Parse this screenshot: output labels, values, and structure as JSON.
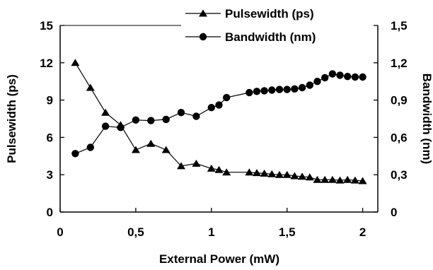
{
  "chart_data": {
    "type": "line",
    "xlabel": "External Power (mW)",
    "ylabel_left": "Pulsewidth (ps)",
    "ylabel_right": "Bandwidth (nm)",
    "xlim": [
      0,
      2.1
    ],
    "ylim_left": [
      0,
      15
    ],
    "ylim_right": [
      0,
      1.5
    ],
    "x_ticks": [
      0,
      0.5,
      1,
      1.5,
      2
    ],
    "x_tick_labels": [
      "0",
      "0,5",
      "1",
      "1,5",
      "2"
    ],
    "y_left_ticks": [
      0,
      3,
      6,
      9,
      12,
      15
    ],
    "y_left_tick_labels": [
      "0",
      "3",
      "6",
      "9",
      "12",
      "15"
    ],
    "y_right_ticks": [
      0,
      0.3,
      0.6,
      0.9,
      1.2,
      1.5
    ],
    "y_right_tick_labels": [
      "0",
      "0,3",
      "0,6",
      "0,9",
      "1,2",
      "1,5"
    ],
    "grid": false,
    "legend_position": "top-right",
    "series": [
      {
        "name": "Pulsewidth (ps)",
        "axis": "left",
        "marker": "triangle",
        "x": [
          0.1,
          0.2,
          0.3,
          0.4,
          0.5,
          0.6,
          0.7,
          0.8,
          0.9,
          1.0,
          1.05,
          1.1,
          1.25,
          1.3,
          1.35,
          1.4,
          1.45,
          1.5,
          1.55,
          1.6,
          1.65,
          1.7,
          1.75,
          1.8,
          1.85,
          1.9,
          1.95,
          2.0
        ],
        "values": [
          12.0,
          10.0,
          8.0,
          7.0,
          5.0,
          5.5,
          5.0,
          3.7,
          3.9,
          3.5,
          3.4,
          3.2,
          3.2,
          3.15,
          3.1,
          3.05,
          3.0,
          3.0,
          2.9,
          2.85,
          2.8,
          2.6,
          2.6,
          2.6,
          2.55,
          2.6,
          2.55,
          2.5
        ]
      },
      {
        "name": "Bandwidth (nm)",
        "axis": "right",
        "marker": "circle",
        "x": [
          0.1,
          0.2,
          0.3,
          0.4,
          0.5,
          0.6,
          0.7,
          0.8,
          0.9,
          1.0,
          1.05,
          1.1,
          1.25,
          1.3,
          1.35,
          1.4,
          1.45,
          1.5,
          1.55,
          1.6,
          1.65,
          1.7,
          1.75,
          1.8,
          1.85,
          1.9,
          1.95,
          2.0
        ],
        "values": [
          0.47,
          0.52,
          0.69,
          0.68,
          0.74,
          0.735,
          0.745,
          0.8,
          0.77,
          0.84,
          0.86,
          0.92,
          0.96,
          0.97,
          0.975,
          0.98,
          0.985,
          0.985,
          0.99,
          1.0,
          1.02,
          1.05,
          1.08,
          1.11,
          1.1,
          1.09,
          1.085,
          1.085
        ]
      }
    ]
  }
}
